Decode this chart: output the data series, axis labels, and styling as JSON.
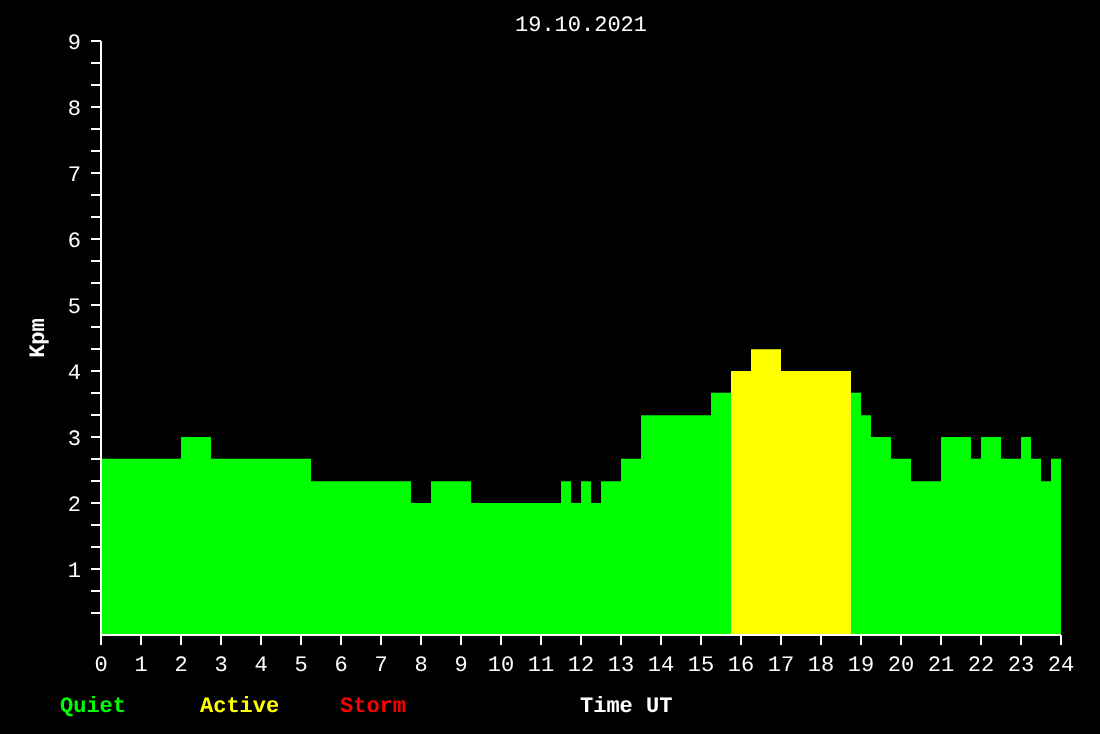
{
  "chart_data": {
    "type": "area",
    "title": "19.10.2021",
    "xlabel": "Time UT",
    "ylabel": "Kpm",
    "x": [
      0,
      0.25,
      0.5,
      0.75,
      1,
      1.25,
      1.5,
      1.75,
      2,
      2.25,
      2.5,
      2.75,
      3,
      3.25,
      3.5,
      3.75,
      4,
      4.25,
      4.5,
      4.75,
      5,
      5.25,
      5.5,
      5.75,
      6,
      6.25,
      6.5,
      6.75,
      7,
      7.25,
      7.5,
      7.75,
      8,
      8.25,
      8.5,
      8.75,
      9,
      9.25,
      9.5,
      9.75,
      10,
      10.25,
      10.5,
      10.75,
      11,
      11.25,
      11.5,
      11.75,
      12,
      12.25,
      12.5,
      12.75,
      13,
      13.25,
      13.5,
      13.75,
      14,
      14.25,
      14.5,
      14.75,
      15,
      15.25,
      15.5,
      15.75,
      16,
      16.25,
      16.5,
      16.75,
      17,
      17.25,
      17.5,
      17.75,
      18,
      18.25,
      18.5,
      18.75,
      19,
      19.25,
      19.5,
      19.75,
      20,
      20.25,
      20.5,
      20.75,
      21,
      21.25,
      21.5,
      21.75,
      22,
      22.25,
      22.5,
      22.75,
      23,
      23.25,
      23.5,
      23.75,
      24
    ],
    "series": [
      {
        "name": "Quiet",
        "color": "#00ff00",
        "values": [
          2.67,
          2.67,
          2.67,
          2.67,
          2.67,
          2.67,
          2.67,
          2.67,
          3,
          3,
          3,
          2.67,
          2.67,
          2.67,
          2.67,
          2.67,
          2.67,
          2.67,
          2.67,
          2.67,
          2.67,
          2.33,
          2.33,
          2.33,
          2.33,
          2.33,
          2.33,
          2.33,
          2.33,
          2.33,
          2.33,
          2,
          2,
          2.33,
          2.33,
          2.33,
          2.33,
          2,
          2,
          2,
          2,
          2,
          2,
          2,
          2,
          2,
          2.33,
          2,
          2.33,
          2,
          2.33,
          2.33,
          2.67,
          2.67,
          3.33,
          3.33,
          3.33,
          3.33,
          3.33,
          3.33,
          3.33,
          3.67,
          3.67,
          3.67,
          null,
          null,
          null,
          null,
          null,
          null,
          null,
          null,
          null,
          null,
          null,
          3.67,
          3.33,
          3,
          3,
          2.67,
          2.67,
          2.33,
          2.33,
          2.33,
          3,
          3,
          3,
          2.67,
          3,
          3,
          2.67,
          2.67,
          3,
          2.67,
          2.33,
          2.67,
          2.67
        ]
      },
      {
        "name": "Active",
        "color": "#ffff00",
        "values": [
          null,
          null,
          null,
          null,
          null,
          null,
          null,
          null,
          null,
          null,
          null,
          null,
          null,
          null,
          null,
          null,
          null,
          null,
          null,
          null,
          null,
          null,
          null,
          null,
          null,
          null,
          null,
          null,
          null,
          null,
          null,
          null,
          null,
          null,
          null,
          null,
          null,
          null,
          null,
          null,
          null,
          null,
          null,
          null,
          null,
          null,
          null,
          null,
          null,
          null,
          null,
          null,
          null,
          null,
          null,
          null,
          null,
          null,
          null,
          null,
          null,
          null,
          null,
          4,
          4,
          4.33,
          4.33,
          4.33,
          4,
          4,
          4,
          4,
          4,
          4,
          4,
          4,
          null,
          null,
          null,
          null,
          null,
          null,
          null,
          null,
          null,
          null,
          null,
          null,
          null,
          null,
          null,
          null,
          null,
          null,
          null,
          null,
          null
        ]
      },
      {
        "name": "Storm",
        "color": "#ff0000",
        "values": [
          null,
          null,
          null,
          null,
          null,
          null,
          null,
          null,
          null,
          null,
          null,
          null,
          null,
          null,
          null,
          null,
          null,
          null,
          null,
          null,
          null,
          null,
          null,
          null,
          null,
          null,
          null,
          null,
          null,
          null,
          null,
          null,
          null,
          null,
          null,
          null,
          null,
          null,
          null,
          null,
          null,
          null,
          null,
          null,
          null,
          null,
          null,
          null,
          null,
          null,
          null,
          null,
          null,
          null,
          null,
          null,
          null,
          null,
          null,
          null,
          null,
          null,
          null,
          null,
          null,
          null,
          null,
          null,
          null,
          null,
          null,
          null,
          null,
          null,
          null,
          null,
          null,
          null,
          null,
          null,
          null,
          null,
          null,
          null,
          null,
          null,
          null,
          null,
          null,
          null,
          null,
          null,
          null,
          null,
          null,
          null,
          null
        ]
      }
    ],
    "xlim": [
      0,
      24
    ],
    "xticks": [
      0,
      1,
      2,
      3,
      4,
      5,
      6,
      7,
      8,
      9,
      10,
      11,
      12,
      13,
      14,
      15,
      16,
      17,
      18,
      19,
      20,
      21,
      22,
      23,
      24
    ],
    "ylim": [
      0,
      9
    ],
    "yticks": [
      {
        "value": 0.333,
        "label": null
      },
      {
        "value": 0.667,
        "label": null
      },
      1,
      {
        "value": 1.333,
        "label": null
      },
      {
        "value": 1.667,
        "label": null
      },
      2,
      {
        "value": 2.333,
        "label": null
      },
      {
        "value": 2.667,
        "label": null
      },
      3,
      {
        "value": 3.333,
        "label": null
      },
      {
        "value": 3.667,
        "label": null
      },
      4,
      {
        "value": 4.333,
        "label": null
      },
      {
        "value": 4.667,
        "label": null
      },
      5,
      {
        "value": 5.333,
        "label": null
      },
      {
        "value": 5.667,
        "label": null
      },
      6,
      {
        "value": 6.333,
        "label": null
      },
      {
        "value": 6.667,
        "label": null
      },
      7,
      {
        "value": 7.333,
        "label": null
      },
      {
        "value": 7.667,
        "label": null
      },
      8,
      {
        "value": 8.333,
        "label": null
      },
      {
        "value": 8.667,
        "label": null
      },
      9
    ],
    "grid": false
  }
}
